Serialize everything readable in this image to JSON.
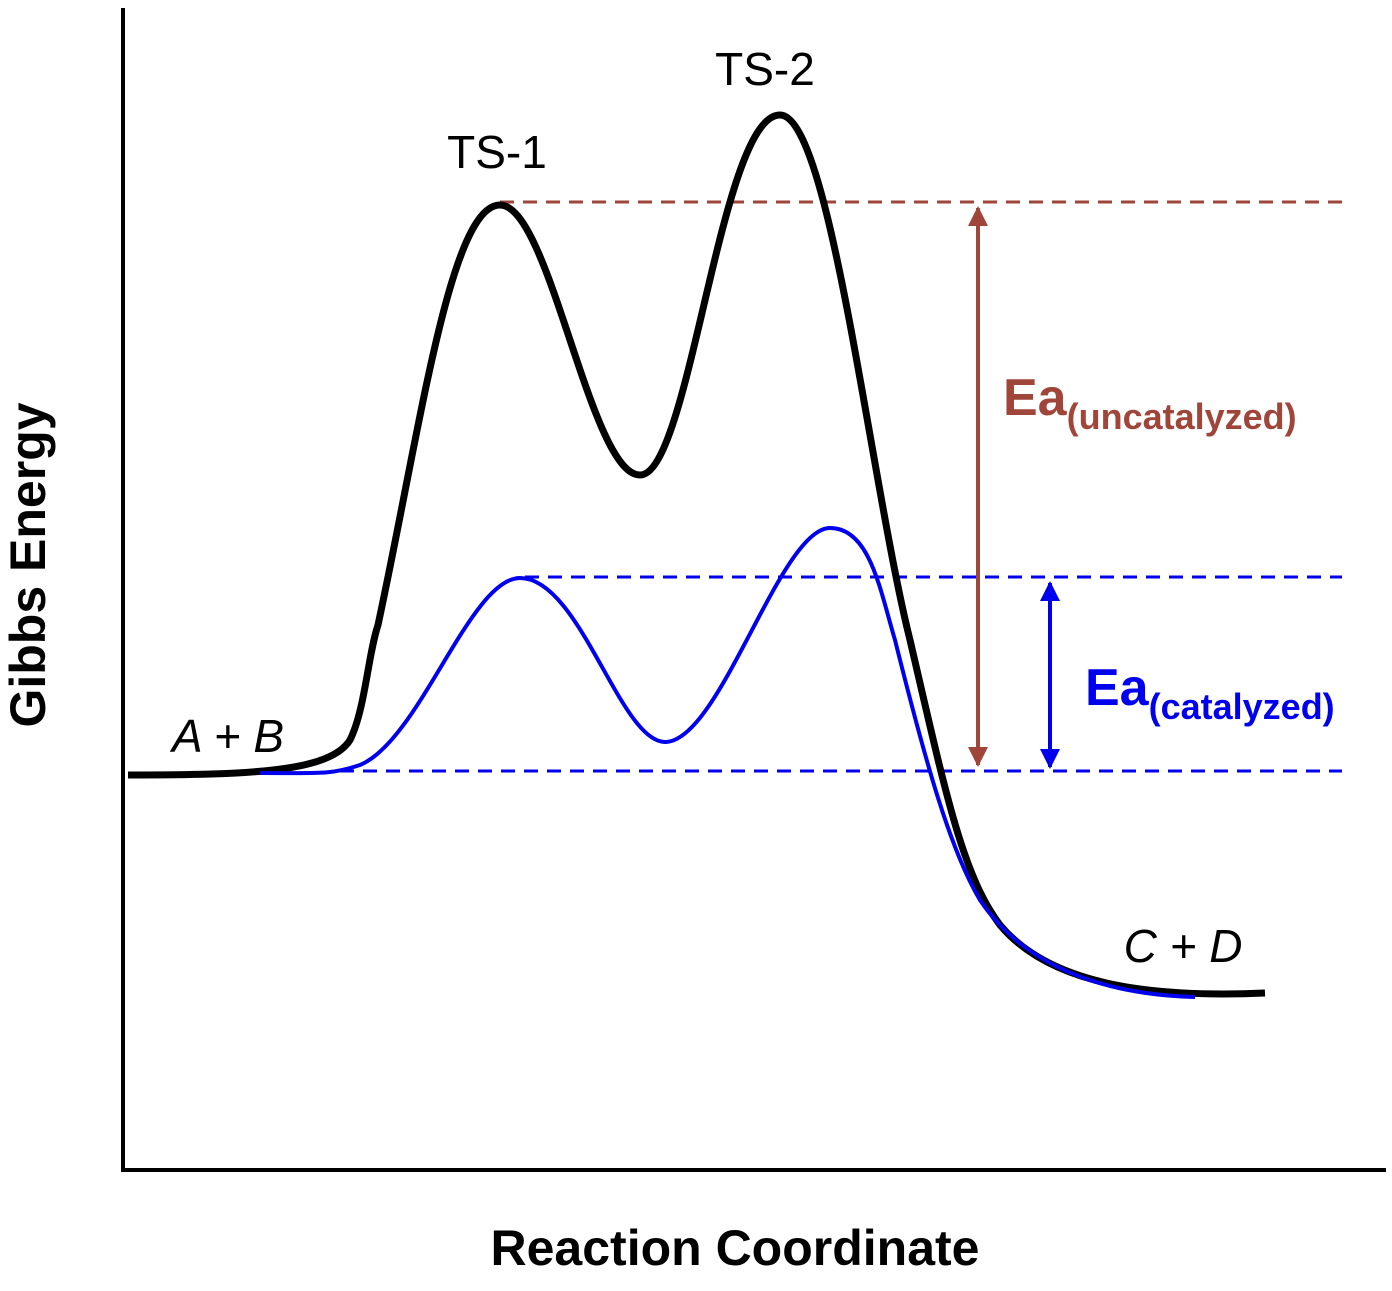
{
  "axes": {
    "y_label": "Gibbs Energy",
    "x_label": "Reaction Coordinate"
  },
  "labels": {
    "ts1": "TS-1",
    "ts2": "TS-2",
    "reactants": "A + B",
    "products": "C + D"
  },
  "annotations": [
    {
      "main": "Ea",
      "sub": "(uncatalyzed)"
    },
    {
      "main": "Ea",
      "sub": "(catalyzed)"
    }
  ]
}
